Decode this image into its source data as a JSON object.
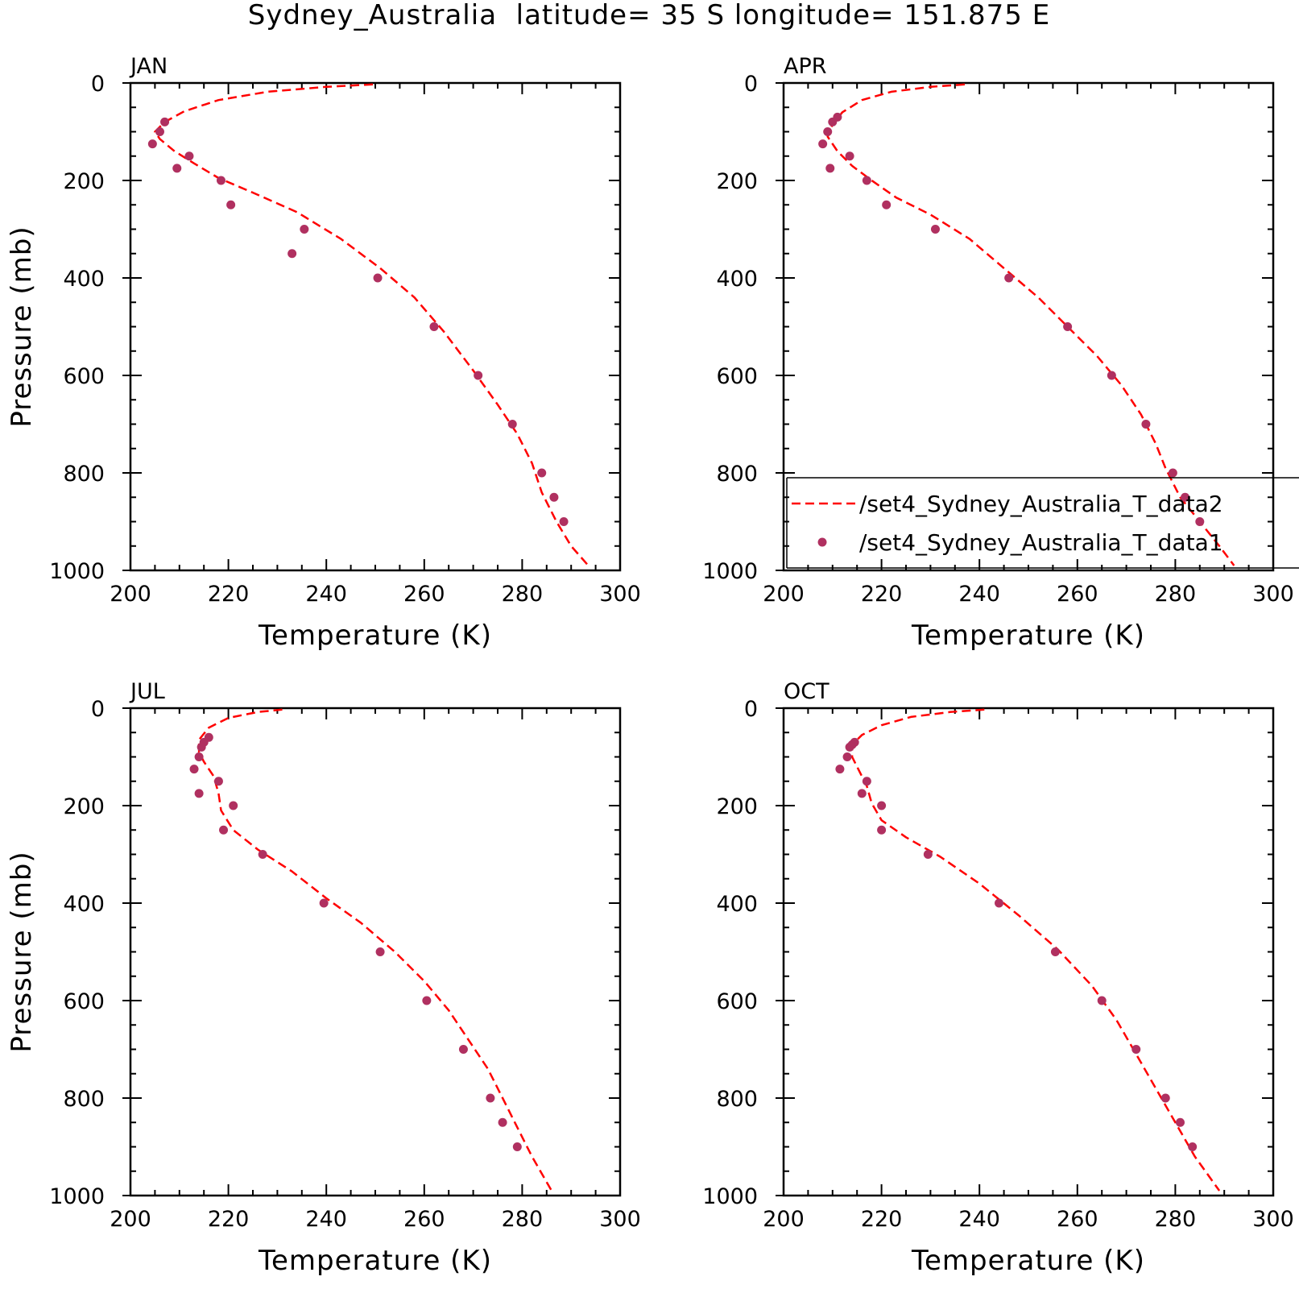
{
  "title": "Sydney_Australia  latitude= 35 S longitude= 151.875 E",
  "chart_data": [
    {
      "type": "line",
      "panel": "JAN",
      "xlabel": "Temperature (K)",
      "ylabel": "Pressure (mb)",
      "xlim": [
        200,
        300
      ],
      "ylim": [
        1000,
        0
      ],
      "y_inverted": true,
      "xticks": [
        "200",
        "220",
        "240",
        "260",
        "280",
        "300"
      ],
      "yticks": [
        "0",
        "200",
        "400",
        "600",
        "800",
        "1000"
      ],
      "series": [
        {
          "name": "/set4_Sydney_Australia_T_data2",
          "style": "dashed-line",
          "color": "#ff0000",
          "points": [
            [
              249.5,
              3
            ],
            [
              240,
              8
            ],
            [
              228,
              18
            ],
            [
              218,
              35
            ],
            [
              211,
              58
            ],
            [
              207,
              80
            ],
            [
              205,
              100
            ],
            [
              206,
              115
            ],
            [
              209,
              140
            ],
            [
              213,
              165
            ],
            [
              218,
              195
            ],
            [
              225,
              225
            ],
            [
              234,
              265
            ],
            [
              243,
              320
            ],
            [
              251,
              380
            ],
            [
              258,
              440
            ],
            [
              264,
              510
            ],
            [
              270,
              590
            ],
            [
              275,
              660
            ],
            [
              279,
              720
            ],
            [
              282,
              780
            ],
            [
              284,
              840
            ],
            [
              287,
              900
            ],
            [
              290,
              950
            ],
            [
              293.5,
              990
            ]
          ]
        },
        {
          "name": "/set4_Sydney_Australia_T_data1",
          "style": "markers",
          "color": "#b03060",
          "points": [
            [
              207,
              80
            ],
            [
              206,
              100
            ],
            [
              204.5,
              125
            ],
            [
              212,
              150
            ],
            [
              209.5,
              175
            ],
            [
              218.5,
              200
            ],
            [
              220.5,
              250
            ],
            [
              235.5,
              300
            ],
            [
              233,
              350
            ],
            [
              250.5,
              400
            ],
            [
              262,
              500
            ],
            [
              271,
              600
            ],
            [
              278,
              700
            ],
            [
              284,
              800
            ],
            [
              286.5,
              850
            ],
            [
              288.5,
              900
            ]
          ]
        }
      ]
    },
    {
      "type": "line",
      "panel": "APR",
      "xlabel": "Temperature (K)",
      "xlim": [
        200,
        300
      ],
      "ylim": [
        1000,
        0
      ],
      "y_inverted": true,
      "xticks": [
        "200",
        "220",
        "240",
        "260",
        "280",
        "300"
      ],
      "yticks": [
        "0",
        "200",
        "400",
        "600",
        "800",
        "1000"
      ],
      "series": [
        {
          "name": "/set4_Sydney_Australia_T_data2",
          "style": "dashed-line",
          "color": "#ff0000",
          "points": [
            [
              237,
              3
            ],
            [
              230,
              8
            ],
            [
              222,
              18
            ],
            [
              216,
              35
            ],
            [
              212,
              60
            ],
            [
              210,
              85
            ],
            [
              209,
              110
            ],
            [
              211,
              140
            ],
            [
              214,
              170
            ],
            [
              218,
              200
            ],
            [
              223,
              235
            ],
            [
              230,
              270
            ],
            [
              238,
              320
            ],
            [
              245,
              380
            ],
            [
              252,
              440
            ],
            [
              258,
              500
            ],
            [
              264,
              560
            ],
            [
              269,
              620
            ],
            [
              273,
              680
            ],
            [
              276,
              740
            ],
            [
              278,
              790
            ],
            [
              281,
              850
            ],
            [
              285,
              900
            ],
            [
              289,
              950
            ],
            [
              292,
              990
            ]
          ]
        },
        {
          "name": "/set4_Sydney_Australia_T_data1",
          "style": "markers",
          "color": "#b03060",
          "points": [
            [
              211,
              70
            ],
            [
              210,
              80
            ],
            [
              209,
              100
            ],
            [
              208,
              125
            ],
            [
              213.5,
              150
            ],
            [
              209.5,
              175
            ],
            [
              217,
              200
            ],
            [
              221,
              250
            ],
            [
              231,
              300
            ],
            [
              246,
              400
            ],
            [
              258,
              500
            ],
            [
              267,
              600
            ],
            [
              274,
              700
            ],
            [
              279.5,
              800
            ],
            [
              282,
              850
            ],
            [
              285,
              900
            ]
          ]
        }
      ],
      "legend": {
        "position": "bottom-right",
        "entries": [
          "/set4_Sydney_Australia_T_data2",
          "/set4_Sydney_Australia_T_data1"
        ]
      }
    },
    {
      "type": "line",
      "panel": "JUL",
      "xlabel": "Temperature (K)",
      "ylabel": "Pressure (mb)",
      "xlim": [
        200,
        300
      ],
      "ylim": [
        1000,
        0
      ],
      "y_inverted": true,
      "xticks": [
        "200",
        "220",
        "240",
        "260",
        "280",
        "300"
      ],
      "yticks": [
        "0",
        "200",
        "400",
        "600",
        "800",
        "1000"
      ],
      "series": [
        {
          "name": "/set4_Sydney_Australia_T_data2",
          "style": "dashed-line",
          "color": "#ff0000",
          "points": [
            [
              231,
              3
            ],
            [
              226,
              8
            ],
            [
              220,
              20
            ],
            [
              216,
              40
            ],
            [
              214,
              65
            ],
            [
              214,
              90
            ],
            [
              215,
              110
            ],
            [
              217,
              140
            ],
            [
              218,
              175
            ],
            [
              218.5,
              210
            ],
            [
              221,
              250
            ],
            [
              226,
              290
            ],
            [
              233,
              335
            ],
            [
              240,
              390
            ],
            [
              247,
              440
            ],
            [
              254,
              500
            ],
            [
              260,
              560
            ],
            [
              265,
              620
            ],
            [
              269,
              680
            ],
            [
              273,
              740
            ],
            [
              276,
              800
            ],
            [
              279,
              860
            ],
            [
              282,
              920
            ],
            [
              286,
              990
            ]
          ]
        },
        {
          "name": "/set4_Sydney_Australia_T_data1",
          "style": "markers",
          "color": "#b03060",
          "points": [
            [
              216,
              60
            ],
            [
              215,
              70
            ],
            [
              214.5,
              80
            ],
            [
              214,
              100
            ],
            [
              213,
              125
            ],
            [
              218,
              150
            ],
            [
              214,
              175
            ],
            [
              221,
              200
            ],
            [
              219,
              250
            ],
            [
              227,
              300
            ],
            [
              239.5,
              400
            ],
            [
              251,
              500
            ],
            [
              260.5,
              600
            ],
            [
              268,
              700
            ],
            [
              273.5,
              800
            ],
            [
              276,
              850
            ],
            [
              279,
              900
            ]
          ]
        }
      ]
    },
    {
      "type": "line",
      "panel": "OCT",
      "xlabel": "Temperature (K)",
      "xlim": [
        200,
        300
      ],
      "ylim": [
        1000,
        0
      ],
      "y_inverted": true,
      "xticks": [
        "200",
        "220",
        "240",
        "260",
        "280",
        "300"
      ],
      "yticks": [
        "0",
        "200",
        "400",
        "600",
        "800",
        "1000"
      ],
      "series": [
        {
          "name": "/set4_Sydney_Australia_T_data2",
          "style": "dashed-line",
          "color": "#ff0000",
          "points": [
            [
              241,
              3
            ],
            [
              234,
              8
            ],
            [
              226,
              18
            ],
            [
              220,
              35
            ],
            [
              216,
              55
            ],
            [
              214,
              75
            ],
            [
              214,
              100
            ],
            [
              215.5,
              130
            ],
            [
              217,
              160
            ],
            [
              218,
              195
            ],
            [
              220,
              230
            ],
            [
              225,
              265
            ],
            [
              232,
              305
            ],
            [
              240,
              360
            ],
            [
              248,
              425
            ],
            [
              256,
              495
            ],
            [
              263,
              570
            ],
            [
              268,
              640
            ],
            [
              272,
              710
            ],
            [
              276,
              780
            ],
            [
              280,
              850
            ],
            [
              284,
              920
            ],
            [
              289,
              990
            ]
          ]
        },
        {
          "name": "/set4_Sydney_Australia_T_data1",
          "style": "markers",
          "color": "#b03060",
          "points": [
            [
              214.5,
              70
            ],
            [
              214,
              75
            ],
            [
              213.5,
              80
            ],
            [
              213,
              100
            ],
            [
              211.5,
              125
            ],
            [
              217,
              150
            ],
            [
              216,
              175
            ],
            [
              220,
              200
            ],
            [
              220,
              250
            ],
            [
              229.5,
              300
            ],
            [
              244,
              400
            ],
            [
              255.5,
              500
            ],
            [
              265,
              600
            ],
            [
              272,
              700
            ],
            [
              278,
              800
            ],
            [
              281,
              850
            ],
            [
              283.5,
              900
            ]
          ]
        }
      ]
    }
  ]
}
